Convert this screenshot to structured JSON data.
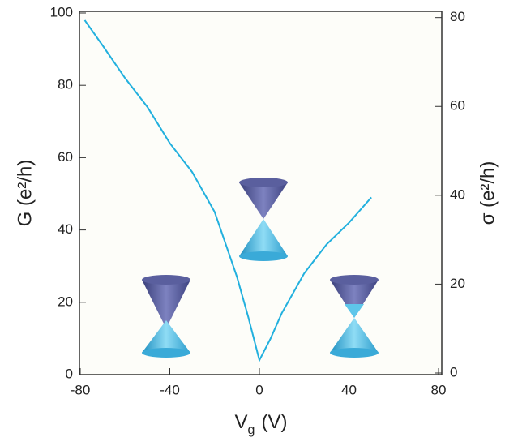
{
  "chart_data": {
    "type": "line",
    "ylabel": "G (e²/h)",
    "y2label": "σ (e²/h)",
    "xlabel": [
      "V",
      "g",
      "(V)"
    ],
    "x": [
      -78,
      -70,
      -60,
      -50,
      -40,
      -30,
      -20,
      -10,
      -5,
      0,
      5,
      10,
      20,
      30,
      40,
      50
    ],
    "values": [
      98,
      91,
      82,
      74,
      64,
      56,
      45,
      27,
      16,
      4,
      10,
      17,
      28,
      36,
      42,
      49
    ],
    "color": "#22b0de",
    "xlim": [
      -80,
      80
    ],
    "xticks": [
      -80,
      -40,
      0,
      40,
      80
    ],
    "ylim": [
      0,
      100
    ],
    "yticks": [
      0,
      20,
      40,
      60,
      80,
      100
    ],
    "y2lim": [
      0,
      81.4
    ],
    "y2ticks": [
      0,
      20,
      40,
      60,
      80
    ]
  }
}
